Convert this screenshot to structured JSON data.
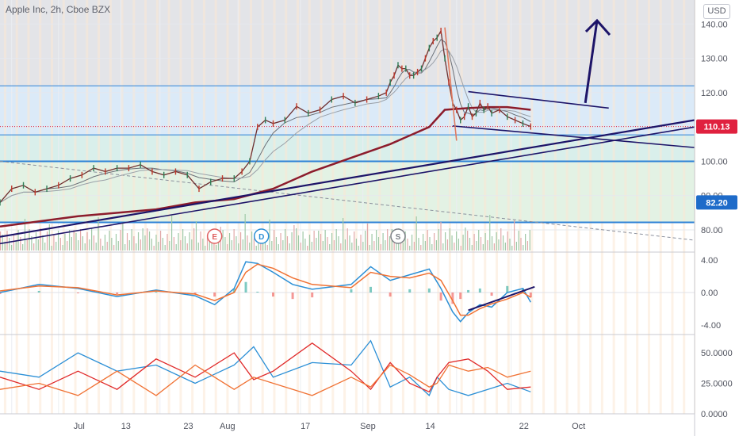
{
  "header": {
    "symbol": "Apple Inc, 2h, Cboe BZX"
  },
  "currency": "USD",
  "colors": {
    "price_tag": "#e0213f",
    "level_tag": "#1e6bc9",
    "level_line": "#2e82d6",
    "trendline": "#1d1468",
    "ma_long": "#8c1c2c",
    "macd_line": "#2b8fd6",
    "signal_line": "#f07234",
    "rsi_blue": "#2b8fd6",
    "rsi_red": "#e02a2a",
    "rsi_orange": "#f07234"
  },
  "chart_data": [
    {
      "type": "line",
      "title": "",
      "x_ticks": [
        "Jul",
        "13",
        "23",
        "Aug",
        "17",
        "Sep",
        "14",
        "22",
        "Oct"
      ],
      "y_ticks": [
        "140.00",
        "130.00",
        "120.00",
        "110.00",
        "100.00",
        "90.00",
        "80.00"
      ],
      "ylim": [
        74,
        147
      ],
      "current_price": "110.13",
      "level_label": "82.20",
      "horizontal_levels": [
        122,
        107.7,
        100,
        82.2
      ],
      "events": [
        "E",
        "D",
        "S"
      ],
      "series": [
        {
          "x": [
            0,
            3,
            6,
            9,
            12,
            15,
            18,
            21,
            24,
            27,
            30,
            33,
            36,
            39,
            42,
            45,
            48,
            51,
            54,
            57,
            60,
            62,
            64,
            66,
            68,
            70,
            73,
            76,
            79,
            82,
            85,
            88,
            91,
            94,
            97,
            99,
            100,
            101,
            102,
            103,
            104,
            105,
            106,
            107,
            108,
            109,
            110,
            111,
            112,
            113,
            114,
            115,
            116,
            117,
            118,
            119,
            120,
            121,
            122,
            123,
            124,
            125,
            126,
            128,
            130,
            132,
            134,
            136
          ],
          "values": [
            88,
            92,
            93,
            91,
            92,
            93,
            95,
            96,
            98,
            97,
            98,
            98,
            99,
            97,
            96,
            97,
            96,
            92,
            94,
            95,
            95,
            97,
            100,
            110,
            112,
            111,
            112,
            116,
            114,
            115,
            118,
            119,
            117,
            118,
            119,
            120,
            123,
            125,
            128,
            127,
            127,
            125,
            125,
            126,
            127,
            130,
            133,
            135,
            136,
            138,
            130,
            123,
            117,
            115,
            112,
            113,
            116,
            113,
            114,
            117,
            115,
            116,
            114,
            115,
            113,
            112,
            111,
            110.13
          ]
        }
      ],
      "moving_average_long": {
        "x": [
          0,
          20,
          40,
          50,
          60,
          70,
          80,
          90,
          100,
          110,
          114,
          120,
          125,
          130,
          136
        ],
        "values": [
          81,
          84,
          86,
          88,
          89,
          92,
          97,
          101,
          105,
          110,
          115,
          115.5,
          115.8,
          115.8,
          115
        ]
      },
      "trendlines": [
        {
          "x": [
            0,
            178
          ],
          "values": [
            78,
            112
          ]
        },
        {
          "x": [
            116,
            178
          ],
          "values": [
            110.3,
            104
          ]
        },
        {
          "x": [
            120,
            156
          ],
          "values": [
            120.3,
            115.5
          ]
        },
        {
          "x": [
            114,
            117
          ],
          "values": [
            139,
            106
          ]
        }
      ],
      "arrow": {
        "x": [
          150,
          153
        ],
        "values": [
          117,
          141
        ]
      }
    },
    {
      "type": "line",
      "title": "",
      "y_ticks": [
        "4.00",
        "0.00",
        "-4.00"
      ],
      "ylim": [
        -5,
        5
      ],
      "series": [
        {
          "x": [
            0,
            10,
            20,
            30,
            40,
            50,
            55,
            60,
            63,
            66,
            70,
            75,
            80,
            90,
            95,
            100,
            105,
            110,
            113,
            116,
            118,
            120,
            123,
            126,
            130,
            134,
            136
          ],
          "values": [
            0,
            1,
            0.5,
            -0.5,
            0.3,
            -0.4,
            -1.5,
            0.5,
            3.8,
            3.6,
            2.5,
            1,
            0.4,
            1,
            3.2,
            1.5,
            2.2,
            2.9,
            0.5,
            -2.4,
            -3.6,
            -2.5,
            -1.5,
            -1.8,
            0,
            0.5,
            -1.2
          ]
        },
        {
          "x": [
            0,
            10,
            20,
            30,
            40,
            50,
            55,
            60,
            63,
            66,
            70,
            75,
            80,
            90,
            95,
            100,
            105,
            110,
            113,
            116,
            118,
            120,
            123,
            126,
            130,
            134,
            136
          ],
          "values": [
            0.2,
            0.8,
            0.6,
            -0.3,
            0.2,
            -0.2,
            -1,
            0,
            2.5,
            3.5,
            3,
            1.8,
            1,
            0.6,
            2.5,
            2,
            1.8,
            2.4,
            1.5,
            -1,
            -2.8,
            -2.8,
            -2,
            -1.4,
            -0.8,
            0,
            -0.6
          ]
        }
      ]
    },
    {
      "type": "line",
      "title": "",
      "y_ticks": [
        "50.0000",
        "25.0000",
        "0.0000"
      ],
      "ylim": [
        0,
        65
      ],
      "series": [
        {
          "x": [
            0,
            10,
            20,
            30,
            40,
            50,
            60,
            65,
            70,
            80,
            90,
            95,
            100,
            105,
            110,
            112,
            115,
            120,
            125,
            130,
            136
          ],
          "values": [
            35,
            30,
            50,
            35,
            40,
            25,
            40,
            55,
            30,
            42,
            40,
            60,
            22,
            30,
            15,
            30,
            20,
            15,
            20,
            25,
            18
          ]
        },
        {
          "x": [
            0,
            10,
            20,
            30,
            40,
            50,
            60,
            65,
            70,
            80,
            90,
            95,
            100,
            105,
            110,
            112,
            115,
            120,
            125,
            130,
            136
          ],
          "values": [
            30,
            20,
            35,
            20,
            45,
            30,
            50,
            28,
            35,
            58,
            35,
            20,
            42,
            25,
            18,
            30,
            42,
            45,
            35,
            20,
            22
          ]
        },
        {
          "x": [
            0,
            10,
            20,
            30,
            40,
            50,
            60,
            65,
            70,
            80,
            90,
            95,
            100,
            105,
            110,
            112,
            115,
            120,
            125,
            130,
            136
          ],
          "values": [
            20,
            25,
            15,
            35,
            15,
            40,
            20,
            30,
            25,
            15,
            30,
            22,
            40,
            32,
            22,
            25,
            40,
            35,
            38,
            30,
            35
          ]
        }
      ]
    }
  ]
}
